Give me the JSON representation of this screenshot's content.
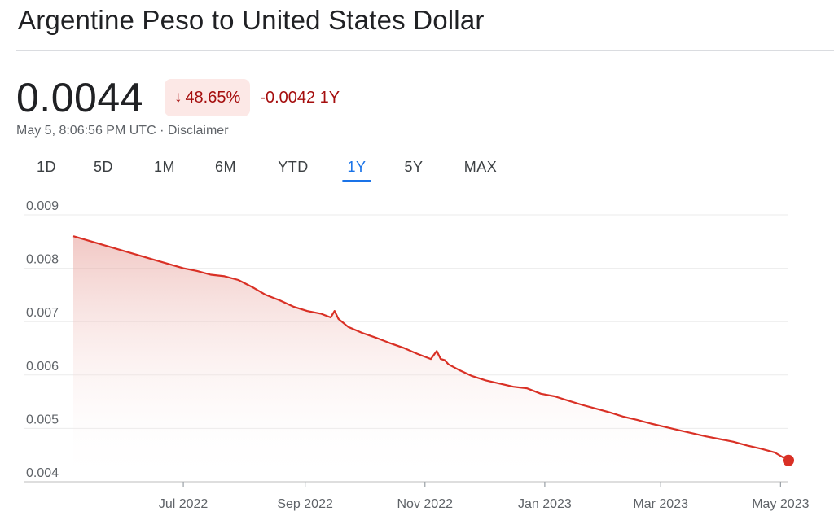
{
  "header": {
    "title": "Argentine Peso to United States Dollar"
  },
  "quote": {
    "price": "0.0044",
    "change_arrow": "↓",
    "change_percent": "48.65%",
    "change_abs": "-0.0042 1Y",
    "timestamp": "May 5, 8:06:56 PM UTC",
    "separator": " · ",
    "disclaimer": "Disclaimer"
  },
  "tabs": [
    {
      "label": "1D",
      "active": false
    },
    {
      "label": "5D",
      "active": false
    },
    {
      "label": "1M",
      "active": false
    },
    {
      "label": "6M",
      "active": false
    },
    {
      "label": "YTD",
      "active": false
    },
    {
      "label": "1Y",
      "active": true
    },
    {
      "label": "5Y",
      "active": false
    },
    {
      "label": "MAX",
      "active": false
    }
  ],
  "colors": {
    "line": "#d93025",
    "fill_top": "#e8a39d",
    "negative": "#a50e0e",
    "accent": "#1a73e8",
    "grid": "#ebebeb"
  },
  "chart_data": {
    "type": "area",
    "title": "",
    "xlabel": "",
    "ylabel": "",
    "ylim": [
      0.004,
      0.009
    ],
    "y_ticks": [
      "0.009",
      "0.008",
      "0.007",
      "0.006",
      "0.005",
      "0.004"
    ],
    "y_tick_values": [
      0.009,
      0.008,
      0.007,
      0.006,
      0.005,
      0.004
    ],
    "x_ticks": [
      "Jul 2022",
      "Sep 2022",
      "Nov 2022",
      "Jan 2023",
      "Mar 2023",
      "May 2023"
    ],
    "x_tick_dates": [
      "2022-07-01",
      "2022-09-01",
      "2022-11-01",
      "2023-01-01",
      "2023-03-01",
      "2023-05-01"
    ],
    "x_range": [
      "2022-05-06",
      "2023-05-05"
    ],
    "grid": true,
    "series": [
      {
        "x": [
          "2022-05-06",
          "2022-05-20",
          "2022-06-03",
          "2022-06-17",
          "2022-07-01",
          "2022-07-08",
          "2022-07-15",
          "2022-07-22",
          "2022-07-29",
          "2022-08-05",
          "2022-08-12",
          "2022-08-19",
          "2022-08-26",
          "2022-09-02",
          "2022-09-09",
          "2022-09-14",
          "2022-09-16",
          "2022-09-18",
          "2022-09-23",
          "2022-09-30",
          "2022-10-07",
          "2022-10-14",
          "2022-10-21",
          "2022-10-28",
          "2022-11-04",
          "2022-11-07",
          "2022-11-09",
          "2022-11-11",
          "2022-11-13",
          "2022-11-18",
          "2022-11-25",
          "2022-12-02",
          "2022-12-09",
          "2022-12-16",
          "2022-12-23",
          "2022-12-30",
          "2023-01-06",
          "2023-01-13",
          "2023-01-20",
          "2023-01-27",
          "2023-02-03",
          "2023-02-10",
          "2023-02-17",
          "2023-02-24",
          "2023-03-03",
          "2023-03-10",
          "2023-03-17",
          "2023-03-24",
          "2023-03-31",
          "2023-04-07",
          "2023-04-14",
          "2023-04-21",
          "2023-04-28",
          "2023-05-05"
        ],
        "values": [
          0.0086,
          0.00845,
          0.0083,
          0.00815,
          0.008,
          0.00795,
          0.00788,
          0.00785,
          0.00778,
          0.00765,
          0.0075,
          0.0074,
          0.00728,
          0.0072,
          0.00715,
          0.00708,
          0.0072,
          0.00705,
          0.0069,
          0.00679,
          0.0067,
          0.0066,
          0.00651,
          0.0064,
          0.0063,
          0.00645,
          0.0063,
          0.00628,
          0.0062,
          0.0061,
          0.00598,
          0.0059,
          0.00584,
          0.00578,
          0.00575,
          0.00565,
          0.0056,
          0.00552,
          0.00544,
          0.00537,
          0.0053,
          0.00522,
          0.00516,
          0.00509,
          0.00503,
          0.00497,
          0.00491,
          0.00485,
          0.0048,
          0.00475,
          0.00468,
          0.00462,
          0.00455,
          0.0044
        ]
      }
    ],
    "last_value": 0.0044
  }
}
